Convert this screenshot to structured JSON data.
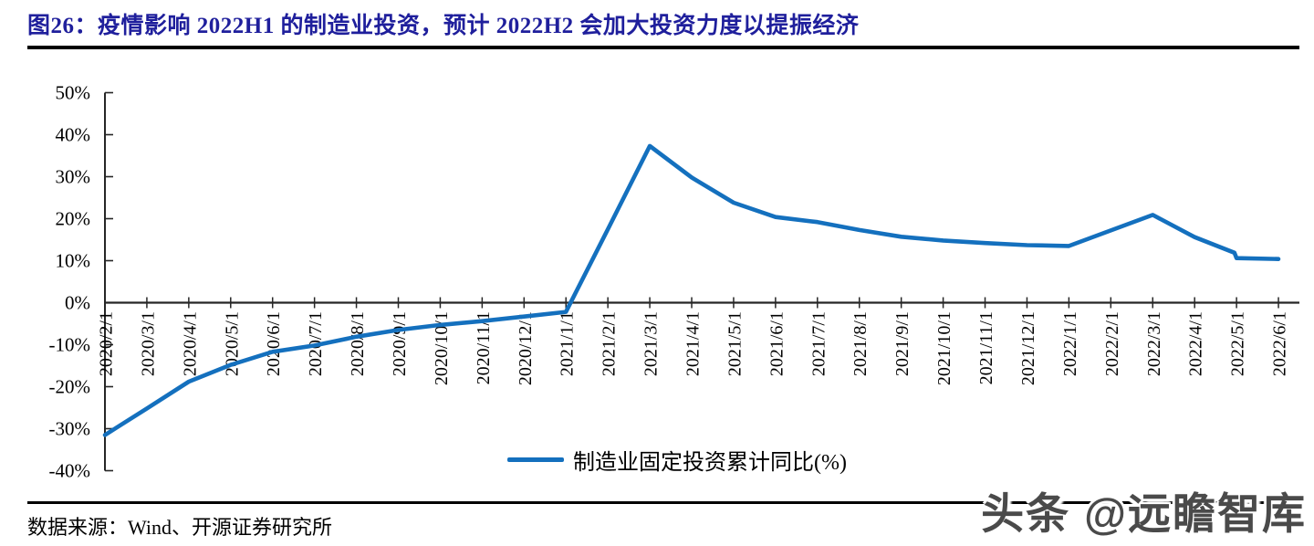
{
  "header": {
    "title": "图26：疫情影响 2022H1 的制造业投资，预计 2022H2 会加大投资力度以提振经济",
    "title_color": "#1f1f9c"
  },
  "legend": {
    "label": "制造业固定投资累计同比(%)"
  },
  "footer": {
    "source": "数据来源：Wind、开源证券研究所"
  },
  "watermark": {
    "text": "头条 @远瞻智库"
  },
  "chart_data": {
    "type": "line",
    "title": "图26：疫情影响 2022H1 的制造业投资，预计 2022H2 会加大投资力度以提振经济",
    "xlabel": "",
    "ylabel": "",
    "ylim": [
      -40,
      50
    ],
    "y_tick_labels": [
      "50%",
      "40%",
      "30%",
      "20%",
      "10%",
      "0%",
      "-10%",
      "-20%",
      "-30%",
      "-40%"
    ],
    "y_tick_values": [
      50,
      40,
      30,
      20,
      10,
      0,
      -10,
      -20,
      -30,
      -40
    ],
    "grid": false,
    "legend_position": "bottom-center",
    "categories": [
      "2020/2/1",
      "2020/3/1",
      "2020/4/1",
      "2020/5/1",
      "2020/6/1",
      "2020/7/1",
      "2020/8/1",
      "2020/9/1",
      "2020/10/1",
      "2020/11/1",
      "2020/12/1",
      "2021/1/1",
      "2021/2/1",
      "2021/3/1",
      "2021/4/1",
      "2021/5/1",
      "2021/6/1",
      "2021/7/1",
      "2021/8/1",
      "2021/9/1",
      "2021/10/1",
      "2021/11/1",
      "2021/12/1",
      "2022/1/1",
      "2022/2/1",
      "2022/3/1",
      "2022/4/1",
      "2022/5/1",
      "2022/6/1"
    ],
    "series": [
      {
        "name": "制造业固定投资累计同比(%)",
        "color": "#1470be",
        "values": [
          -31.5,
          -25.2,
          -18.8,
          -14.8,
          -11.7,
          -10.2,
          -8.1,
          -6.5,
          -5.3,
          -4.4,
          -3.3,
          -2.2,
          17.5,
          37.3,
          29.8,
          23.8,
          20.4,
          19.2,
          17.3,
          15.7,
          14.8,
          14.2,
          13.7,
          13.5,
          17.2,
          20.9,
          15.6,
          10.6,
          10.4
        ]
      }
    ],
    "extra_vertices": [
      {
        "note": "visible step just before 2022/5/1",
        "x_index": 26.95,
        "value": 11.9
      }
    ]
  }
}
